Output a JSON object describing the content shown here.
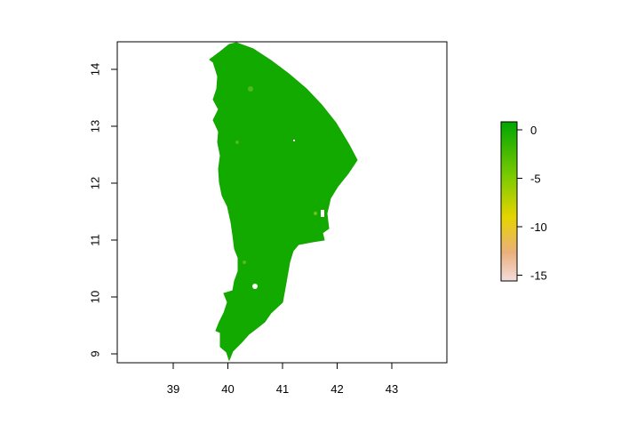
{
  "map": {
    "x_ticks": [
      "39",
      "40",
      "41",
      "42",
      "43"
    ],
    "y_ticks": [
      "9",
      "10",
      "11",
      "12",
      "13",
      "14"
    ],
    "x_range": [
      38.0,
      44.0
    ],
    "y_range": [
      8.85,
      14.5
    ],
    "land_color": "#13aa00",
    "background_color": "#ffffff"
  },
  "legend": {
    "tick_labels": [
      "0",
      "-5",
      "-10",
      "-15"
    ],
    "range": [
      -16,
      1
    ],
    "colors": [
      "#f4dcdc",
      "#eab07a",
      "#e6d400",
      "#7ecb00",
      "#00a600"
    ]
  }
}
